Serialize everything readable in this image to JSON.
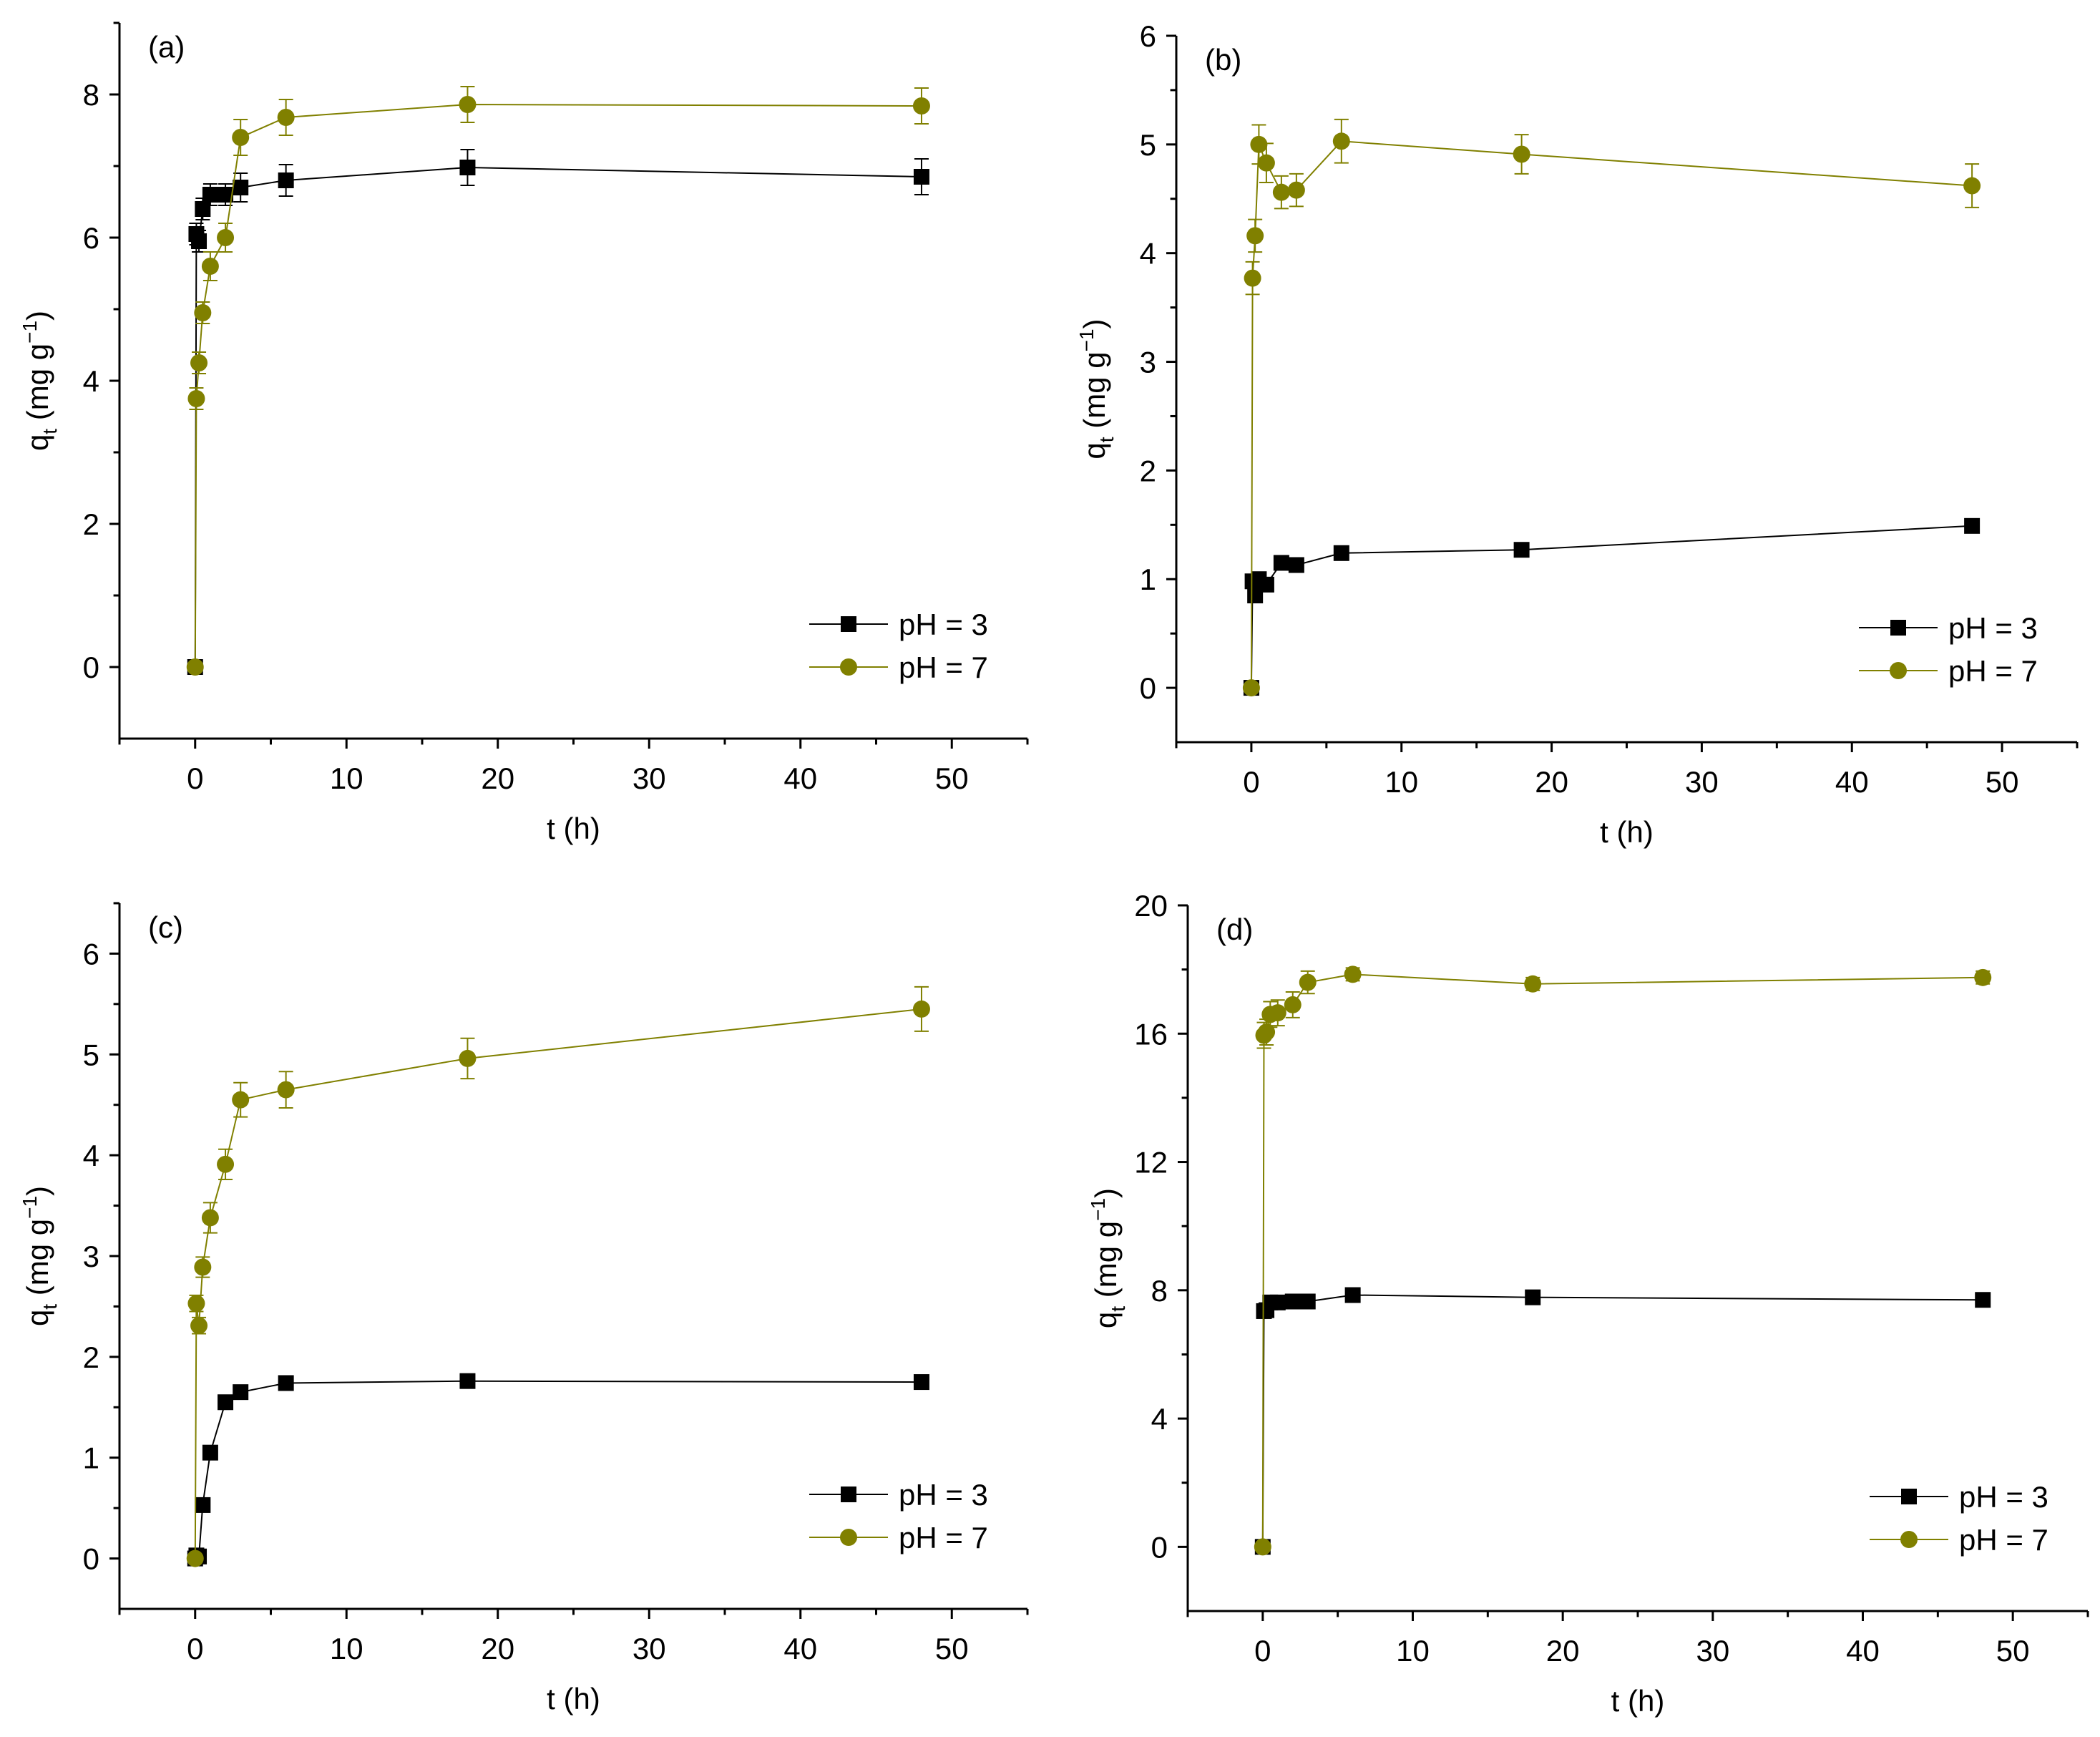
{
  "colors": {
    "black_series": "#000000",
    "olive_series": "#808000",
    "axis": "#000000",
    "background": "#ffffff"
  },
  "chart_data": [
    {
      "panel_label": "(a)",
      "type": "line",
      "xlabel": "t (h)",
      "ylabel_main": "q",
      "ylabel_sub": "t",
      "ylabel_rest": " (mg g",
      "ylabel_sup": "−1",
      "ylabel_close": ")",
      "xlim": [
        -5,
        55
      ],
      "ylim": [
        -1,
        9
      ],
      "xticks": [
        0,
        10,
        20,
        30,
        40,
        50
      ],
      "yticks": [
        0,
        2,
        4,
        6,
        8
      ],
      "legend_position": "bottom-right",
      "series": [
        {
          "name": "pH = 3",
          "marker": "square",
          "color": "#000000",
          "x": [
            0,
            0.08,
            0.25,
            0.5,
            1,
            2,
            3,
            6,
            18,
            48
          ],
          "y": [
            0,
            6.05,
            5.95,
            6.4,
            6.6,
            6.6,
            6.7,
            6.8,
            6.98,
            6.85
          ],
          "err": [
            0,
            0.15,
            0.15,
            0.15,
            0.15,
            0.15,
            0.2,
            0.22,
            0.25,
            0.25
          ]
        },
        {
          "name": "pH = 7",
          "marker": "circle",
          "color": "#808000",
          "x": [
            0,
            0.08,
            0.25,
            0.5,
            1,
            2,
            3,
            6,
            18,
            48
          ],
          "y": [
            0,
            3.75,
            4.25,
            4.95,
            5.6,
            6.0,
            7.4,
            7.68,
            7.86,
            7.84
          ],
          "err": [
            0,
            0.15,
            0.15,
            0.15,
            0.2,
            0.2,
            0.25,
            0.25,
            0.25,
            0.25
          ]
        }
      ]
    },
    {
      "panel_label": "(b)",
      "type": "line",
      "xlabel": "t (h)",
      "ylabel_main": "q",
      "ylabel_sub": "t",
      "ylabel_rest": " (mg g",
      "ylabel_sup": "−1",
      "ylabel_close": ")",
      "xlim": [
        -5,
        55
      ],
      "ylim": [
        -0.5,
        6
      ],
      "xticks": [
        0,
        10,
        20,
        30,
        40,
        50
      ],
      "yticks": [
        0,
        1,
        2,
        3,
        4,
        5,
        6
      ],
      "legend_position": "bottom-right",
      "series": [
        {
          "name": "pH = 3",
          "marker": "square",
          "color": "#000000",
          "x": [
            0,
            0.08,
            0.25,
            0.5,
            1,
            2,
            3,
            6,
            18,
            48
          ],
          "y": [
            0,
            0.98,
            0.85,
            1.0,
            0.95,
            1.15,
            1.13,
            1.24,
            1.27,
            1.49
          ],
          "err": [
            0,
            0.05,
            0.05,
            0.05,
            0.05,
            0.05,
            0.05,
            0.05,
            0.05,
            0.05
          ]
        },
        {
          "name": "pH = 7",
          "marker": "circle",
          "color": "#808000",
          "x": [
            0,
            0.08,
            0.25,
            0.5,
            1,
            2,
            3,
            6,
            18,
            48
          ],
          "y": [
            0,
            3.77,
            4.16,
            5.0,
            4.83,
            4.56,
            4.58,
            5.03,
            4.91,
            4.62
          ],
          "err": [
            0,
            0.15,
            0.15,
            0.18,
            0.18,
            0.15,
            0.15,
            0.2,
            0.18,
            0.2
          ]
        }
      ]
    },
    {
      "panel_label": "(c)",
      "type": "line",
      "xlabel": "t (h)",
      "ylabel_main": "q",
      "ylabel_sub": "t",
      "ylabel_rest": " (mg g",
      "ylabel_sup": "−1",
      "ylabel_close": ")",
      "xlim": [
        -5,
        55
      ],
      "ylim": [
        -0.5,
        6.5
      ],
      "xticks": [
        0,
        10,
        20,
        30,
        40,
        50
      ],
      "yticks": [
        0,
        1,
        2,
        3,
        4,
        5,
        6
      ],
      "legend_position": "bottom-right",
      "series": [
        {
          "name": "pH = 3",
          "marker": "square",
          "color": "#000000",
          "x": [
            0,
            0.08,
            0.25,
            0.5,
            1,
            2,
            3,
            6,
            18,
            48
          ],
          "y": [
            0,
            0.03,
            0.02,
            0.53,
            1.05,
            1.55,
            1.65,
            1.74,
            1.76,
            1.75
          ],
          "err": [
            0,
            0.02,
            0.02,
            0.03,
            0.03,
            0.03,
            0.03,
            0.03,
            0.03,
            0.03
          ]
        },
        {
          "name": "pH = 7",
          "marker": "circle",
          "color": "#808000",
          "x": [
            0,
            0.08,
            0.25,
            0.5,
            1,
            2,
            3,
            6,
            18,
            48
          ],
          "y": [
            0,
            2.53,
            2.31,
            2.89,
            3.38,
            3.91,
            4.55,
            4.65,
            4.96,
            5.45
          ],
          "err": [
            0,
            0.08,
            0.08,
            0.1,
            0.15,
            0.15,
            0.17,
            0.18,
            0.2,
            0.22
          ]
        }
      ]
    },
    {
      "panel_label": "(d)",
      "type": "line",
      "xlabel": "t (h)",
      "ylabel_main": "q",
      "ylabel_sub": "t",
      "ylabel_rest": " (mg g",
      "ylabel_sup": "−1",
      "ylabel_close": ")",
      "xlim": [
        -5,
        55
      ],
      "ylim": [
        -2,
        20
      ],
      "xticks": [
        0,
        10,
        20,
        30,
        40,
        50
      ],
      "yticks": [
        0,
        4,
        8,
        12,
        16,
        20
      ],
      "legend_position": "bottom-right",
      "series": [
        {
          "name": "pH = 3",
          "marker": "square",
          "color": "#000000",
          "x": [
            0,
            0.08,
            0.25,
            0.5,
            1,
            2,
            3,
            6,
            18,
            48
          ],
          "y": [
            0,
            7.35,
            7.38,
            7.62,
            7.62,
            7.65,
            7.65,
            7.85,
            7.78,
            7.7
          ],
          "err": [
            0,
            0.1,
            0.1,
            0.1,
            0.1,
            0.1,
            0.1,
            0.1,
            0.1,
            0.1
          ]
        },
        {
          "name": "pH = 7",
          "marker": "circle",
          "color": "#808000",
          "x": [
            0,
            0.08,
            0.25,
            0.5,
            1,
            2,
            3,
            6,
            18,
            48
          ],
          "y": [
            0,
            15.95,
            16.05,
            16.6,
            16.65,
            16.9,
            17.6,
            17.85,
            17.55,
            17.75
          ],
          "err": [
            0,
            0.4,
            0.4,
            0.4,
            0.4,
            0.4,
            0.35,
            0.2,
            0.2,
            0.2
          ]
        }
      ]
    }
  ]
}
